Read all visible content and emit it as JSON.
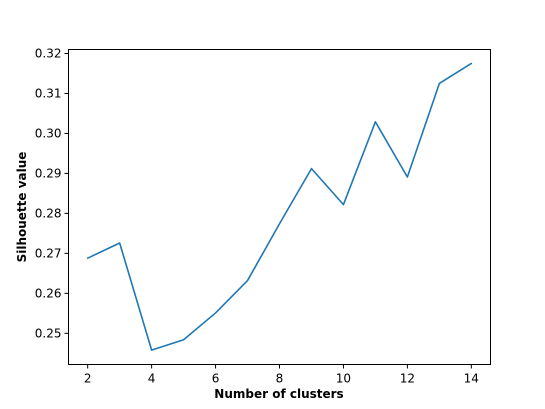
{
  "chart_data": {
    "type": "line",
    "title": "",
    "xlabel": "Number of clusters",
    "ylabel": "Silhouette value",
    "xlim": [
      1.4,
      14.6
    ],
    "ylim": [
      0.2422,
      0.321
    ],
    "xticks": [
      2,
      4,
      6,
      8,
      10,
      12,
      14
    ],
    "xtick_labels": [
      "2",
      "4",
      "6",
      "8",
      "10",
      "12",
      "14"
    ],
    "yticks": [
      0.25,
      0.26,
      0.27,
      0.28,
      0.29,
      0.3,
      0.31,
      0.32
    ],
    "ytick_labels": [
      "0.25",
      "0.26",
      "0.27",
      "0.28",
      "0.29",
      "0.30",
      "0.31",
      "0.32"
    ],
    "grid": false,
    "series": [
      {
        "name": "silhouette",
        "color": "#1f77b4",
        "x": [
          2,
          3,
          4,
          5,
          6,
          7,
          8,
          9,
          10,
          11,
          12,
          13,
          14
        ],
        "y": [
          0.2688,
          0.2726,
          0.2458,
          0.2484,
          0.2551,
          0.2632,
          0.2774,
          0.2912,
          0.2822,
          0.3029,
          0.2891,
          0.3125,
          0.3175
        ]
      }
    ]
  }
}
